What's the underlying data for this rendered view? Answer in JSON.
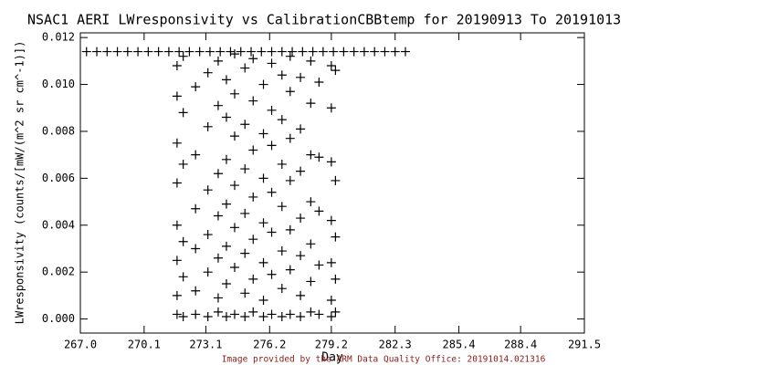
{
  "chart_data": {
    "type": "scatter",
    "title": "NSAC1 AERI LWresponsivity vs CalibrationCBBtemp for 20190913 To 20191013",
    "x_label": "Day",
    "y_label": "LWresponsivity (counts/[mW/(m^2 sr cm^-1)])",
    "footer": "Image provided by the ARM Data Quality Office: 20191014.021316",
    "color": "#000000",
    "marker": "+",
    "xlim": [
      267.0,
      291.5
    ],
    "ylim": [
      -0.0006,
      0.0122
    ],
    "xticks": [
      {
        "value": 267.0,
        "label": "267.0"
      },
      270.1,
      273.1,
      276.2,
      279.2,
      282.3,
      285.4,
      288.4,
      291.5
    ],
    "yticks": [
      {
        "value": 0,
        "label": "0.000"
      },
      0.002,
      0.004,
      0.006,
      0.008,
      {
        "value": 0.01,
        "label": "0.010"
      },
      0.012
    ],
    "x": [
      267.3,
      267.8,
      268.3,
      268.8,
      269.3,
      269.8,
      270.3,
      270.8,
      271.3,
      271.8,
      272.3,
      272.8,
      273.3,
      273.8,
      274.3,
      274.8,
      275.3,
      275.8,
      276.3,
      276.8,
      277.3,
      277.8,
      278.3,
      278.8,
      279.3,
      279.8,
      280.3,
      280.8,
      281.3,
      281.8,
      282.3,
      282.8,
      271.7,
      271.7,
      271.7,
      271.7,
      271.7,
      271.7,
      271.7,
      271.7,
      272.0,
      272.0,
      272.0,
      272.0,
      272.0,
      272.0,
      272.6,
      272.6,
      272.6,
      272.6,
      272.6,
      272.6,
      273.2,
      273.2,
      273.2,
      273.2,
      273.2,
      273.2,
      273.7,
      273.7,
      273.7,
      273.7,
      273.7,
      273.7,
      273.7,
      274.1,
      274.1,
      274.1,
      274.1,
      274.1,
      274.1,
      274.1,
      274.5,
      274.5,
      274.5,
      274.5,
      274.5,
      274.5,
      274.5,
      275.0,
      275.0,
      275.0,
      275.0,
      275.0,
      275.0,
      275.0,
      275.4,
      275.4,
      275.4,
      275.4,
      275.4,
      275.4,
      275.4,
      275.9,
      275.9,
      275.9,
      275.9,
      275.9,
      275.9,
      275.9,
      276.3,
      276.3,
      276.3,
      276.3,
      276.3,
      276.3,
      276.3,
      276.8,
      276.8,
      276.8,
      276.8,
      276.8,
      276.8,
      276.8,
      277.2,
      277.2,
      277.2,
      277.2,
      277.2,
      277.2,
      277.2,
      277.7,
      277.7,
      277.7,
      277.7,
      277.7,
      277.7,
      277.7,
      278.2,
      278.2,
      278.2,
      278.2,
      278.2,
      278.2,
      278.2,
      278.6,
      278.6,
      278.6,
      278.6,
      278.6,
      279.2,
      279.2,
      279.2,
      279.2,
      279.2,
      279.2,
      279.2,
      279.4,
      279.4,
      279.4,
      279.4,
      279.4
    ],
    "values": [
      0.0114,
      0.0114,
      0.0114,
      0.0114,
      0.0114,
      0.0114,
      0.0114,
      0.0114,
      0.0114,
      0.0114,
      0.0114,
      0.0114,
      0.0114,
      0.0114,
      0.0114,
      0.0114,
      0.0114,
      0.0114,
      0.0114,
      0.0114,
      0.0114,
      0.0114,
      0.0114,
      0.0114,
      0.0114,
      0.0114,
      0.0114,
      0.0114,
      0.0114,
      0.0114,
      0.0114,
      0.0114,
      0.0002,
      0.001,
      0.0025,
      0.004,
      0.0058,
      0.0075,
      0.0095,
      0.0108,
      0.0001,
      0.0018,
      0.0033,
      0.0066,
      0.0088,
      0.0112,
      0.0002,
      0.0012,
      0.003,
      0.0047,
      0.007,
      0.0099,
      0.0001,
      0.002,
      0.0036,
      0.0055,
      0.0082,
      0.0105,
      0.0003,
      0.0009,
      0.0026,
      0.0044,
      0.0062,
      0.0091,
      0.011,
      0.0001,
      0.0015,
      0.0031,
      0.0049,
      0.0068,
      0.0086,
      0.0102,
      0.0002,
      0.0022,
      0.0039,
      0.0057,
      0.0078,
      0.0096,
      0.0113,
      0.0001,
      0.0011,
      0.0028,
      0.0045,
      0.0064,
      0.0083,
      0.0107,
      0.0003,
      0.0017,
      0.0034,
      0.0052,
      0.0072,
      0.0093,
      0.0111,
      0.0001,
      0.0008,
      0.0024,
      0.0041,
      0.006,
      0.0079,
      0.01,
      0.0002,
      0.0019,
      0.0037,
      0.0054,
      0.0074,
      0.0089,
      0.0109,
      0.0001,
      0.0013,
      0.0029,
      0.0048,
      0.0066,
      0.0085,
      0.0104,
      0.0002,
      0.0021,
      0.0038,
      0.0059,
      0.0077,
      0.0097,
      0.0112,
      0.0001,
      0.001,
      0.0027,
      0.0043,
      0.0063,
      0.0081,
      0.0103,
      0.0003,
      0.0016,
      0.0032,
      0.005,
      0.007,
      0.0092,
      0.011,
      0.0002,
      0.0023,
      0.0046,
      0.0069,
      0.0101,
      0.0001,
      0.0008,
      0.0024,
      0.0042,
      0.0067,
      0.009,
      0.0108,
      0.0003,
      0.0017,
      0.0035,
      0.0059,
      0.0106
    ]
  }
}
